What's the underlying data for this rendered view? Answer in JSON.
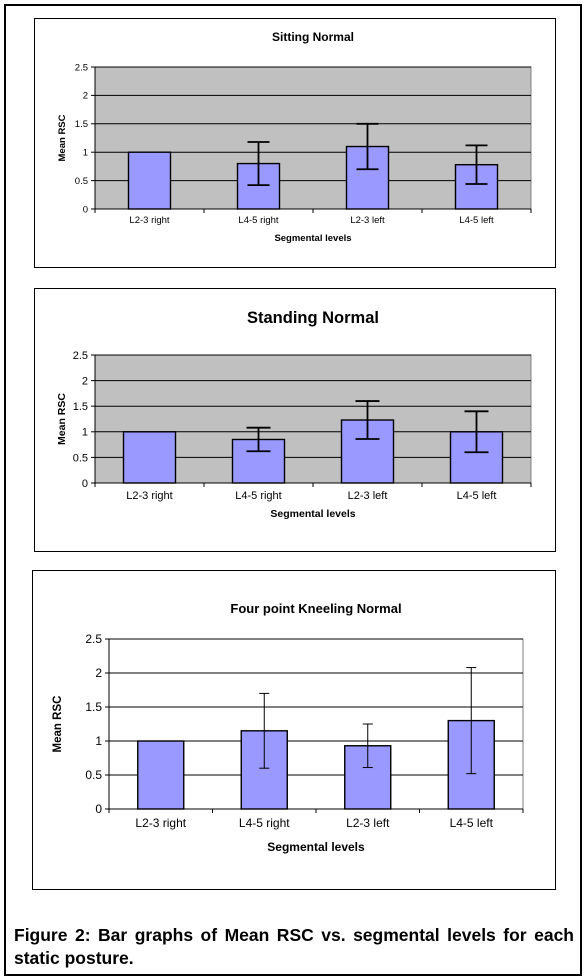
{
  "chart_data": [
    {
      "type": "bar",
      "title": "Sitting Normal",
      "xlabel": "Segmental levels",
      "ylabel": "Mean RSC",
      "categories": [
        "L2-3 right",
        "L4-5 right",
        "L2-3 left",
        "L4-5 left"
      ],
      "values": [
        1.0,
        0.8,
        1.1,
        0.78
      ],
      "error": [
        0,
        0.38,
        0.4,
        0.34
      ],
      "ylim": [
        0,
        2.5
      ],
      "yticks": [
        "0",
        "0.5",
        "1",
        "1.5",
        "2",
        "2.5"
      ],
      "grid": true,
      "legend": "none"
    },
    {
      "type": "bar",
      "title": "Standing Normal",
      "xlabel": "Segmental levels",
      "ylabel": "Mean RSC",
      "categories": [
        "L2-3 right",
        "L4-5 right",
        "L2-3 left",
        "L4-5 left"
      ],
      "values": [
        1.0,
        0.85,
        1.23,
        1.0
      ],
      "error": [
        0,
        0.23,
        0.37,
        0.4
      ],
      "ylim": [
        0,
        2.5
      ],
      "yticks": [
        "0",
        "0.5",
        "1",
        "1.5",
        "2",
        "2.5"
      ],
      "grid": true,
      "legend": "none"
    },
    {
      "type": "bar",
      "title": "Four point Kneeling Normal",
      "xlabel": "Segmental levels",
      "ylabel": "Mean RSC",
      "categories": [
        "L2-3 right",
        "L4-5 right",
        "L2-3 left",
        "L4-5 left"
      ],
      "values": [
        1.0,
        1.15,
        0.93,
        1.3
      ],
      "error": [
        0,
        0.55,
        0.32,
        0.78
      ],
      "ylim": [
        0,
        2.5
      ],
      "yticks": [
        "0",
        "0.5",
        "1",
        "1.5",
        "2",
        "2.5"
      ],
      "grid": true,
      "legend": "none"
    }
  ],
  "colors": {
    "bar": "#9999ff",
    "plot_bg_gray": "#c0c0c0",
    "plot_bg_white": "#ffffff"
  },
  "caption": "Figure 2: Bar graphs of Mean RSC vs. segmental levels for each static posture."
}
